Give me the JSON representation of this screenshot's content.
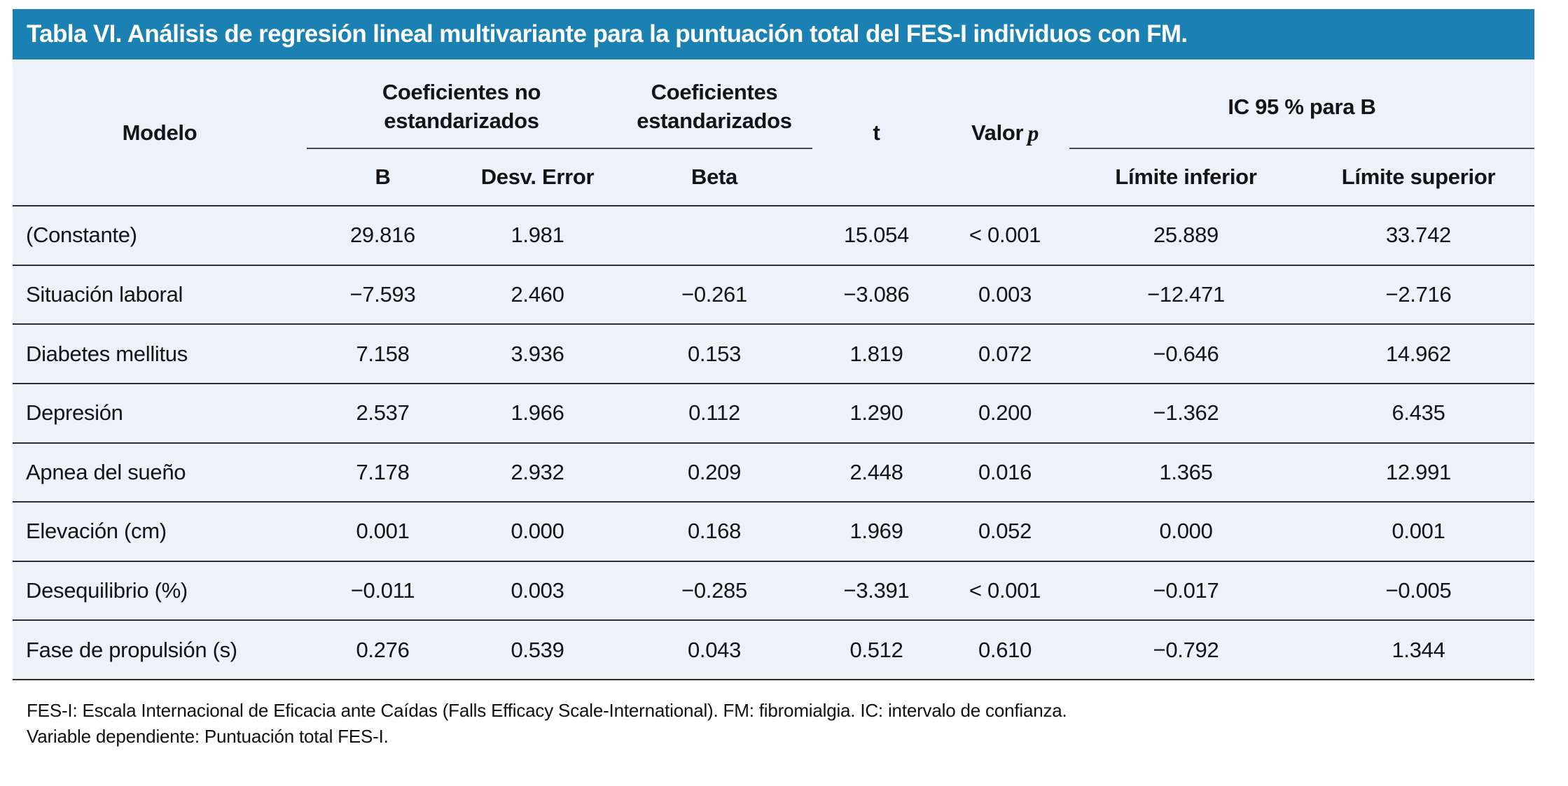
{
  "title": "Tabla VI. Análisis de regresión lineal multivariante para la puntuación total del FES-I individuos con FM.",
  "colors": {
    "title_bar_bg": "#1b80b2",
    "title_text": "#ffffff",
    "table_bg": "#edf1f8",
    "rule_dark": "#2e2e2e",
    "rule_group": "#4a4a4a",
    "body_text": "#141414"
  },
  "header": {
    "modelo": "Modelo",
    "group_unstandardized": "Coeficientes no estandarizados",
    "group_standardized": "Coeficientes estandarizados",
    "t": "t",
    "valor_p_prefix": "Valor",
    "valor_p_italic": "p",
    "group_ic": "IC 95 % para B",
    "sub_b": "B",
    "sub_desv_error": "Desv. Error",
    "sub_beta": "Beta",
    "sub_limite_inferior": "Límite inferior",
    "sub_limite_superior": "Límite superior"
  },
  "table": {
    "rows": [
      {
        "model": "(Constante)",
        "b": "29.816",
        "se": "1.981",
        "beta": "",
        "t": "15.054",
        "p": "< 0.001",
        "lower": "25.889",
        "upper": "33.742"
      },
      {
        "model": "Situación laboral",
        "b": "−7.593",
        "se": "2.460",
        "beta": "−0.261",
        "t": "−3.086",
        "p": "0.003",
        "lower": "−12.471",
        "upper": "−2.716"
      },
      {
        "model": "Diabetes mellitus",
        "b": "7.158",
        "se": "3.936",
        "beta": "0.153",
        "t": "1.819",
        "p": "0.072",
        "lower": "−0.646",
        "upper": "14.962"
      },
      {
        "model": "Depresión",
        "b": "2.537",
        "se": "1.966",
        "beta": "0.112",
        "t": "1.290",
        "p": "0.200",
        "lower": "−1.362",
        "upper": "6.435"
      },
      {
        "model": "Apnea del sueño",
        "b": "7.178",
        "se": "2.932",
        "beta": "0.209",
        "t": "2.448",
        "p": "0.016",
        "lower": "1.365",
        "upper": "12.991"
      },
      {
        "model": "Elevación (cm)",
        "b": "0.001",
        "se": "0.000",
        "beta": "0.168",
        "t": "1.969",
        "p": "0.052",
        "lower": "0.000",
        "upper": "0.001"
      },
      {
        "model": "Desequilibrio (%)",
        "b": "−0.011",
        "se": "0.003",
        "beta": "−0.285",
        "t": "−3.391",
        "p": "< 0.001",
        "lower": "−0.017",
        "upper": "−0.005"
      },
      {
        "model": "Fase de propulsión (s)",
        "b": "0.276",
        "se": "0.539",
        "beta": "0.043",
        "t": "0.512",
        "p": "0.610",
        "lower": "−0.792",
        "upper": "1.344"
      }
    ]
  },
  "footnotes": [
    "FES-I: Escala Internacional de Eficacia ante Caídas (Falls Efficacy Scale-International). FM: fibromialgia. IC: intervalo de confianza.",
    "Variable dependiente: Puntuación total FES-I."
  ]
}
